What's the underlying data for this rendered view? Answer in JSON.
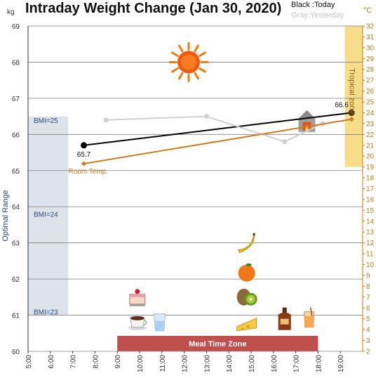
{
  "chart_data": {
    "type": "line",
    "title": "Intraday Weight Change (Jan 30, 2020)",
    "legend": {
      "today": "Black :Today",
      "yesterday": "Gray:Yesterday"
    },
    "y_unit": "kg",
    "y2_unit": "°C",
    "ylim": [
      60,
      69
    ],
    "y_ticks": [
      60,
      61,
      62,
      63,
      64,
      65,
      66,
      67,
      68,
      69
    ],
    "y2lim": [
      2,
      32
    ],
    "x_ticks": [
      "5:00",
      "6:00",
      "7:00",
      "8:00",
      "9:00",
      "10:00",
      "11:00",
      "12:00",
      "13:00",
      "14:00",
      "15:00",
      "16:00",
      "17:00",
      "18:00",
      "19:00"
    ],
    "x_range_hours": [
      5,
      20
    ],
    "series": [
      {
        "key": "today",
        "color": "#000000",
        "points": [
          {
            "x": 7.5,
            "y": 65.7
          },
          {
            "x": 19.5,
            "y": 66.6
          }
        ]
      },
      {
        "key": "yesterday",
        "color": "#d0d0d0",
        "points": [
          {
            "x": 8.5,
            "y": 66.4
          },
          {
            "x": 13.0,
            "y": 66.5
          },
          {
            "x": 16.5,
            "y": 65.8
          },
          {
            "x": 18.2,
            "y": 66.3
          }
        ]
      },
      {
        "key": "room_temp",
        "axis": "y2",
        "color": "#d07a20",
        "points": [
          {
            "x": 7.5,
            "y": 19.3
          },
          {
            "x": 19.5,
            "y": 23.4
          }
        ]
      }
    ],
    "data_labels": [
      {
        "text": "65.7",
        "x": 7.5,
        "y": 65.7,
        "position": "below"
      },
      {
        "text": "66.6",
        "x": 19.5,
        "y": 66.6,
        "position": "above"
      }
    ],
    "room_temp_label": "Room Temp.",
    "optimal_band": {
      "label": "Optimal Range",
      "ymin": 61,
      "ymax": 66.5,
      "x_from": 5,
      "x_to": 6.8
    },
    "bmi_markers": [
      {
        "label": "BMI=25",
        "y": 66.4
      },
      {
        "label": "BMI=24",
        "y": 63.8
      },
      {
        "label": "BMI=23",
        "y": 61.1
      }
    ],
    "tropical_zone": {
      "label": "Tropical zone",
      "y2min": 19,
      "y2max": 32,
      "x_from": 19.2,
      "x_to": 20
    },
    "meal_zone": {
      "label": "Meal Time Zone",
      "x_from": 9,
      "x_to": 18,
      "color": "#c0504d"
    },
    "icons": [
      {
        "name": "sun-icon",
        "x": 12.2,
        "y": 68.0
      },
      {
        "name": "fireplace-icon",
        "x": 17.5,
        "y": 66.4
      },
      {
        "name": "cake-icon",
        "x": 9.9,
        "y": 61.5
      },
      {
        "name": "coffee-icon",
        "x": 9.9,
        "y": 60.8
      },
      {
        "name": "water-glass-icon",
        "x": 10.9,
        "y": 60.8
      },
      {
        "name": "banana-icon",
        "x": 14.8,
        "y": 63.0
      },
      {
        "name": "orange-icon",
        "x": 14.8,
        "y": 62.2
      },
      {
        "name": "kiwi-icon",
        "x": 14.8,
        "y": 61.5
      },
      {
        "name": "cheese-icon",
        "x": 14.8,
        "y": 60.8
      },
      {
        "name": "liquor-bottle-icon",
        "x": 16.5,
        "y": 60.9
      },
      {
        "name": "juice-glass-icon",
        "x": 17.6,
        "y": 60.9
      }
    ]
  }
}
